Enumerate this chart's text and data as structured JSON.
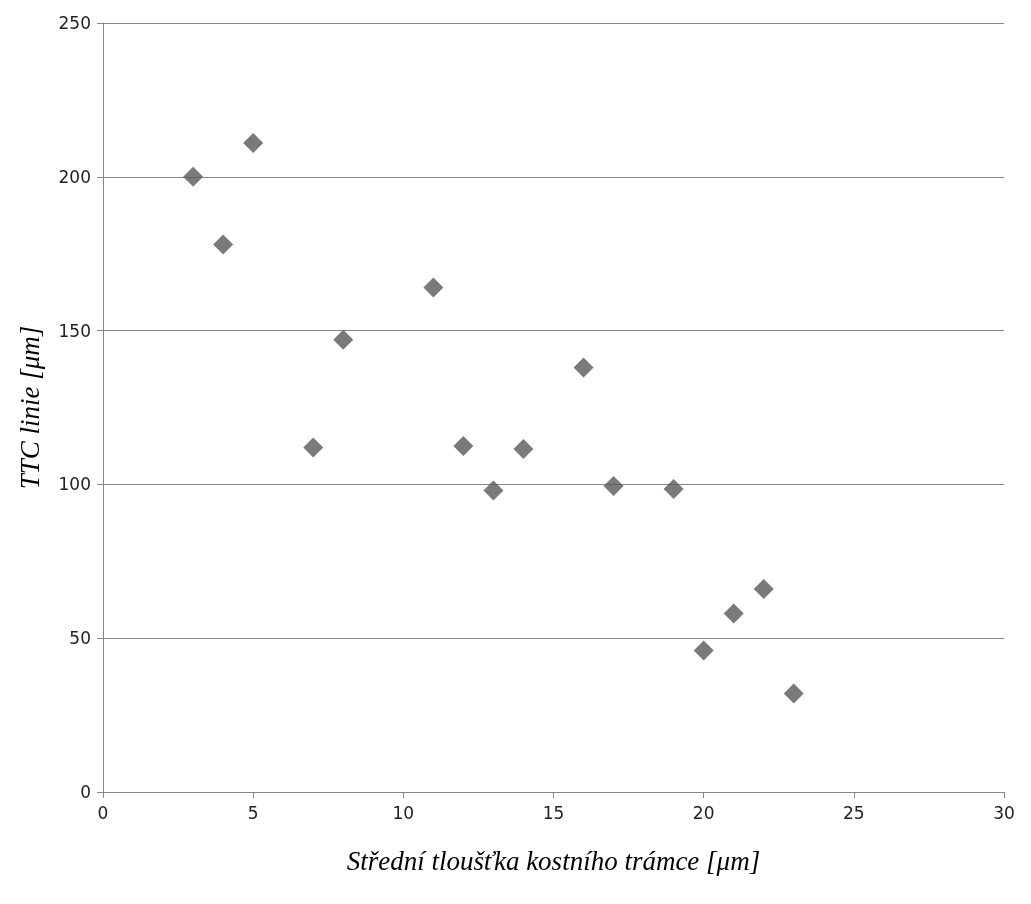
{
  "chart_data": {
    "type": "scatter",
    "xlabel": "Střední tloušťka kostního trámce [μm]",
    "ylabel": "TTC linie [μm]",
    "x": [
      3,
      4,
      5,
      7,
      8,
      11,
      12,
      13,
      14,
      16,
      17,
      19,
      20,
      21,
      22,
      23
    ],
    "values": [
      200,
      178,
      211,
      112,
      147,
      164,
      112.5,
      98,
      111.5,
      138,
      99.5,
      98.5,
      46,
      58,
      66,
      32
    ],
    "color": "#595959",
    "marker": "diamond",
    "xlim": [
      0,
      30
    ],
    "xticks": [
      0,
      5,
      10,
      15,
      20,
      25,
      30
    ],
    "ylim": [
      0,
      250
    ],
    "yticks": [
      0,
      50,
      100,
      150,
      200,
      250
    ],
    "grid": "y"
  }
}
